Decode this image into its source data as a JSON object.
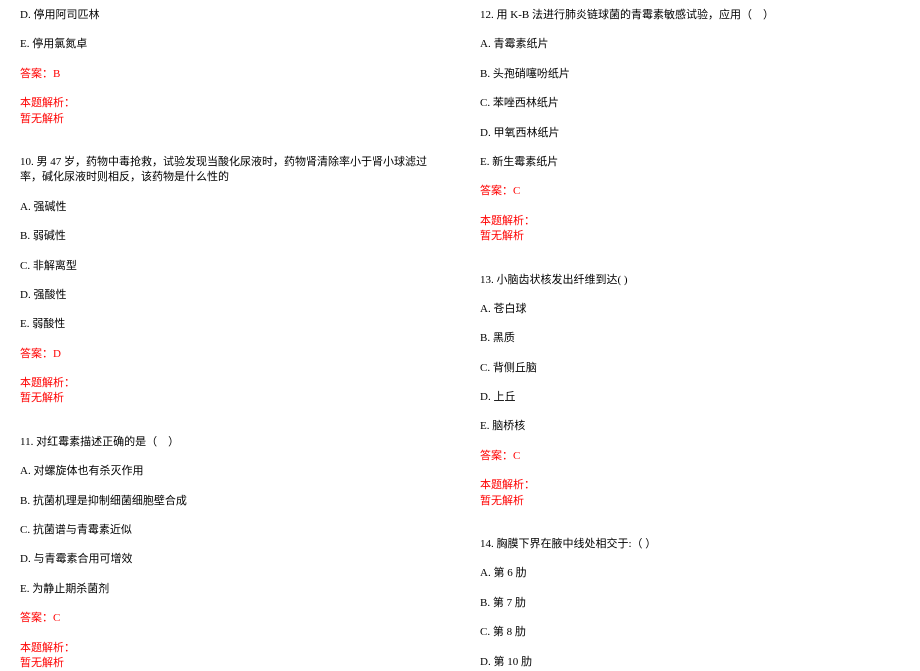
{
  "colors": {
    "text": "#000000",
    "accent": "#ff0000",
    "background": "#ffffff"
  },
  "typography": {
    "font_family": "SimSun",
    "font_size_pt": 8
  },
  "left": {
    "q9_d": "D. 停用阿司匹林",
    "q9_e": "E. 停用氯氮卓",
    "q9_answer_label": "答案：",
    "q9_answer_value": "B",
    "q9_analysis_title": "本题解析：",
    "q9_analysis_body": "暂无解析",
    "q10_stem": "10. 男 47 岁，药物中毒抢救，试验发现当酸化尿液时，药物肾清除率小于肾小球滤过率，碱化尿液时则相反，该药物是什么性的",
    "q10_a": "A. 强碱性",
    "q10_b": "B. 弱碱性",
    "q10_c": "C. 非解离型",
    "q10_d": "D. 强酸性",
    "q10_e": "E. 弱酸性",
    "q10_answer_label": "答案：",
    "q10_answer_value": "D",
    "q10_analysis_title": "本题解析：",
    "q10_analysis_body": "暂无解析",
    "q11_stem": "11. 对红霉素描述正确的是（　）",
    "q11_a": "A. 对螺旋体也有杀灭作用",
    "q11_b": "B. 抗菌机理是抑制细菌细胞壁合成",
    "q11_c": "C. 抗菌谱与青霉素近似",
    "q11_d": "D. 与青霉素合用可增效",
    "q11_e": "E. 为静止期杀菌剂",
    "q11_answer_label": "答案：",
    "q11_answer_value": "C",
    "q11_analysis_title": "本题解析：",
    "q11_analysis_body": "暂无解析"
  },
  "right": {
    "q12_stem": "12. 用 K-B 法进行肺炎链球菌的青霉素敏感试验，应用（　）",
    "q12_a": "A. 青霉素纸片",
    "q12_b": "B. 头孢硝噻吩纸片",
    "q12_c": "C. 苯唑西林纸片",
    "q12_d": "D. 甲氧西林纸片",
    "q12_e": "E. 新生霉素纸片",
    "q12_answer_label": "答案：",
    "q12_answer_value": "C",
    "q12_analysis_title": "本题解析：",
    "q12_analysis_body": "暂无解析",
    "q13_stem": "13. 小脑齿状核发出纤维到达( )",
    "q13_a": "A. 苍白球",
    "q13_b": "B. 黑质",
    "q13_c": "C. 背侧丘脑",
    "q13_d": "D. 上丘",
    "q13_e": "E. 脑桥核",
    "q13_answer_label": "答案：",
    "q13_answer_value": "C",
    "q13_analysis_title": "本题解析：",
    "q13_analysis_body": "暂无解析",
    "q14_stem": "14. 胸膜下界在腋中线处相交于:（ ）",
    "q14_a": "A. 第 6 肋",
    "q14_b": "B. 第 7 肋",
    "q14_c": "C. 第 8 肋",
    "q14_d": "D. 第 10 肋"
  }
}
